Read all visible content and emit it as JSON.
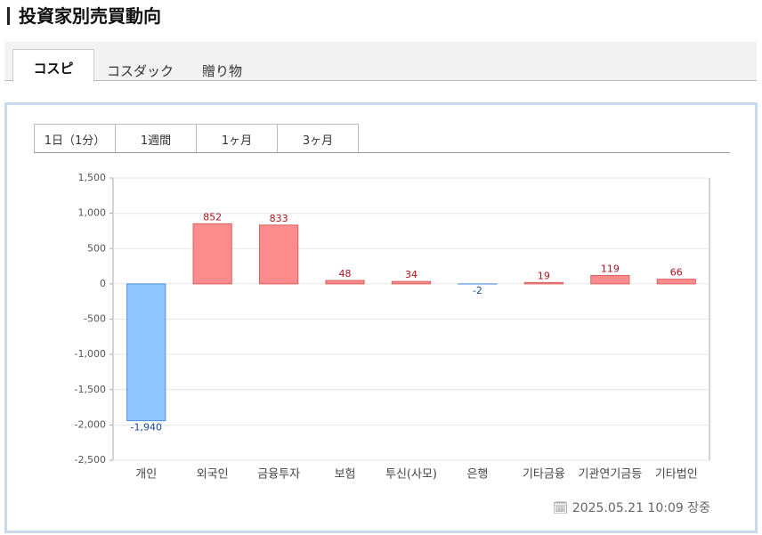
{
  "header": {
    "title": "投資家別売買動向"
  },
  "tabs": [
    "コスピ",
    "コスダック",
    "贈り物"
  ],
  "period_tabs": [
    "1日（1分）",
    "1週間",
    "1ヶ月",
    "3ヶ月"
  ],
  "chart_data": {
    "type": "bar",
    "categories": [
      "개인",
      "외국인",
      "금융투자",
      "보험",
      "투신(사모)",
      "은행",
      "기타금융",
      "기관연기금등",
      "기타법인"
    ],
    "values": [
      -1940,
      852,
      833,
      48,
      34,
      -2,
      19,
      119,
      66
    ],
    "value_labels": [
      "-1,940",
      "852",
      "833",
      "48",
      "34",
      "-2",
      "19",
      "119",
      "66"
    ],
    "positive_color": "#ff8c8c",
    "negative_color": "#8fc5ff",
    "ylim": [
      -2500,
      1500
    ],
    "yticks": [
      {
        "value": 1500,
        "label": "1,500"
      },
      {
        "value": 1000,
        "label": "1,000"
      },
      500,
      0,
      -500,
      {
        "value": -1000,
        "label": "-1,000"
      },
      {
        "value": -1500,
        "label": "-1,500"
      },
      {
        "value": -2000,
        "label": "-2,000"
      },
      {
        "value": -2500,
        "label": "-2,500"
      }
    ],
    "grid": true
  },
  "timestamp": "2025.05.21 10:09 장중"
}
